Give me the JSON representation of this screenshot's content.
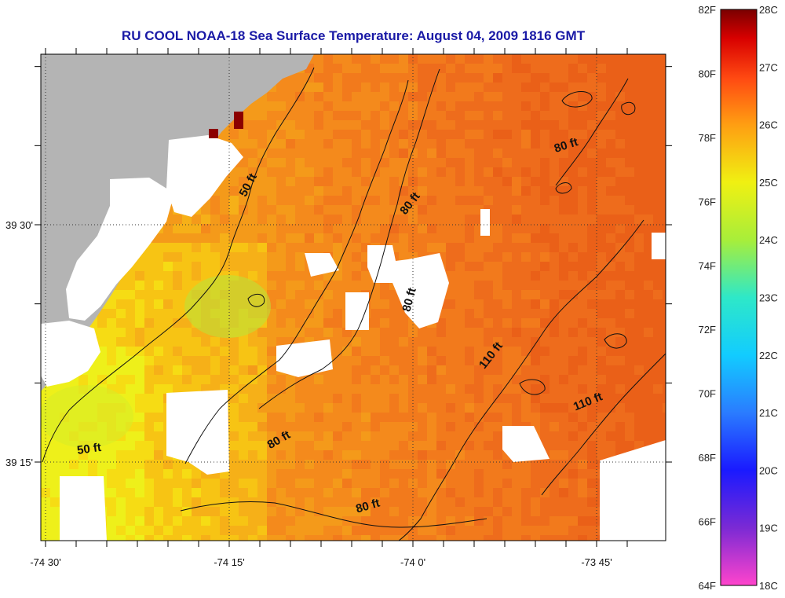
{
  "title": "RU COOL  NOAA-18  Sea Surface Temperature:  August 04, 2009 1816 GMT",
  "map": {
    "x_ticks": [
      {
        "label": "-74 30'",
        "lon": -74.5
      },
      {
        "label": "-74 15'",
        "lon": -74.25
      },
      {
        "label": "-74 0'",
        "lon": -74.0
      },
      {
        "label": "-73 45'",
        "lon": -73.75
      }
    ],
    "y_ticks": [
      {
        "label": "39 30'",
        "lat": 39.5
      },
      {
        "label": "39 15'",
        "lat": 39.25
      }
    ],
    "contour_labels": [
      {
        "text": "50 ft",
        "lon": -74.22,
        "lat": 39.54,
        "rotate": -62
      },
      {
        "text": "80 ft",
        "lon": -74.0,
        "lat": 39.52,
        "rotate": -52
      },
      {
        "text": "80 ft",
        "lon": -73.79,
        "lat": 39.58,
        "rotate": -18
      },
      {
        "text": "80 ft",
        "lon": -74.0,
        "lat": 39.42,
        "rotate": -75
      },
      {
        "text": "110 ft",
        "lon": -73.89,
        "lat": 39.36,
        "rotate": -52
      },
      {
        "text": "110 ft",
        "lon": -73.76,
        "lat": 39.31,
        "rotate": -22
      },
      {
        "text": "50 ft",
        "lon": -74.44,
        "lat": 39.26,
        "rotate": -8
      },
      {
        "text": "80 ft",
        "lon": -74.18,
        "lat": 39.27,
        "rotate": -30
      },
      {
        "text": "80 ft",
        "lon": -74.06,
        "lat": 39.2,
        "rotate": -16
      }
    ]
  },
  "colorbar": {
    "f_labels": [
      "82F",
      "80F",
      "78F",
      "76F",
      "74F",
      "72F",
      "70F",
      "68F",
      "66F",
      "64F"
    ],
    "c_labels": [
      "28C",
      "27C",
      "26C",
      "25C",
      "24C",
      "23C",
      "22C",
      "21C",
      "20C",
      "19C",
      "18C"
    ],
    "f_range": [
      64,
      82
    ],
    "c_range": [
      18,
      28
    ]
  }
}
